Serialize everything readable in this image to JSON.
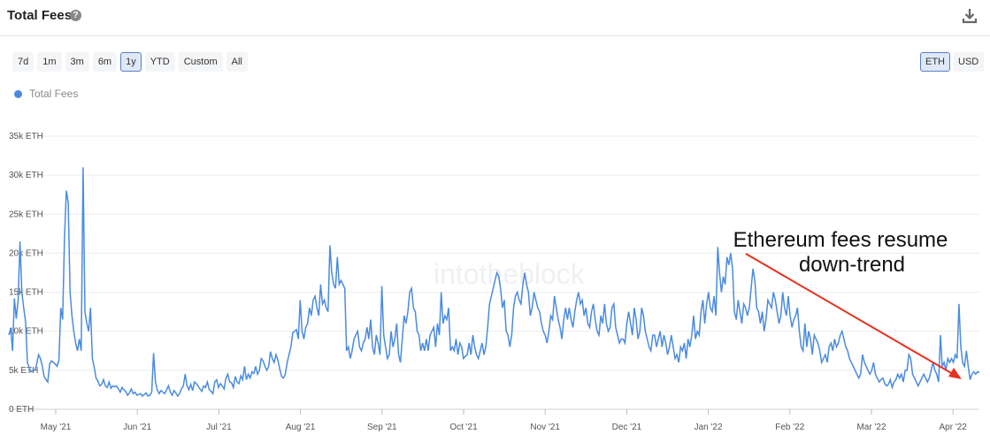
{
  "header": {
    "title": "Total Fees",
    "help_icon": "question-circle-icon",
    "download_icon": "download-icon"
  },
  "ranges": [
    "7d",
    "1m",
    "3m",
    "6m",
    "1y",
    "YTD",
    "Custom",
    "All"
  ],
  "active_range": "1y",
  "units": [
    "ETH",
    "USD"
  ],
  "active_unit": "ETH",
  "watermark": "intotheblock",
  "chart_data": {
    "type": "line",
    "series": [
      {
        "name": "Total Fees",
        "color": "#4a8be0",
        "values": [
          9.5,
          10.4,
          7.5,
          14.2,
          11.6,
          14.0,
          21.5,
          15.0,
          13.0,
          11.2,
          6.0,
          5.3,
          4.8,
          5.0,
          5.0,
          5.8,
          7.0,
          6.5,
          5.5,
          4.2,
          3.8,
          3.5,
          5.8,
          6.2,
          6.0,
          5.8,
          5.5,
          6.3,
          13.0,
          11.5,
          22.0,
          28.0,
          26.5,
          15.0,
          12.0,
          10.0,
          8.5,
          7.5,
          9.0,
          7.5,
          31.0,
          12.5,
          11.0,
          10.0,
          13.0,
          6.5,
          5.4,
          4.0,
          3.6,
          3.0,
          3.2,
          3.8,
          3.0,
          2.8,
          3.5,
          2.7,
          3.0,
          2.9,
          3.0,
          2.6,
          2.2,
          2.8,
          2.5,
          2.3,
          1.8,
          2.1,
          2.6,
          2.0,
          2.2,
          1.8,
          1.9,
          2.0,
          1.7,
          1.9,
          2.1,
          1.7,
          1.8,
          2.2,
          7.2,
          3.5,
          2.5,
          2.0,
          2.4,
          2.2,
          2.0,
          2.5,
          3.0,
          2.2,
          1.8,
          2.4,
          2.1,
          1.7,
          2.0,
          2.6,
          3.0,
          4.5,
          3.0,
          2.5,
          3.2,
          2.4,
          3.5,
          3.3,
          3.0,
          2.6,
          2.3,
          3.0,
          2.8,
          3.5,
          2.5,
          2.3,
          2.0,
          3.5,
          3.8,
          2.8,
          3.3,
          3.0,
          2.6,
          4.0,
          4.5,
          3.5,
          3.4,
          2.8,
          4.2,
          3.5,
          3.3,
          4.3,
          3.8,
          5.5,
          3.8,
          4.5,
          4.0,
          4.8,
          4.6,
          5.5,
          4.5,
          5.0,
          6.5,
          6.2,
          5.5,
          5.0,
          5.5,
          7.4,
          6.5,
          6.0,
          7.0,
          6.3,
          5.2,
          4.2,
          4.0,
          4.5,
          6.0,
          7.0,
          8.0,
          9.8,
          10.0,
          10.2,
          9.0,
          14.0,
          10.0,
          9.0,
          10.5,
          11.0,
          13.0,
          12.0,
          14.0,
          14.5,
          13.0,
          12.0,
          16.0,
          13.5,
          14.0,
          13.0,
          12.5,
          21.0,
          17.5,
          16.0,
          15.5,
          19.5,
          16.0,
          16.5,
          16.0,
          15.5,
          7.5,
          8.0,
          6.5,
          7.5,
          9.0,
          9.5,
          10.0,
          8.0,
          7.5,
          8.5,
          9.0,
          10.5,
          9.0,
          11.5,
          8.0,
          7.0,
          9.5,
          8.5,
          7.0,
          15.8,
          9.5,
          8.0,
          6.5,
          7.0,
          10.0,
          8.0,
          9.0,
          11.0,
          7.0,
          6.0,
          9.0,
          12.0,
          11.0,
          12.5,
          15.0,
          15.5,
          13.0,
          12.5,
          10.0,
          9.5,
          7.5,
          8.5,
          7.5,
          9.0,
          7.5,
          9.5,
          10.0,
          10.5,
          8.0,
          11.0,
          9.5,
          15.0,
          11.0,
          12.0,
          11.5,
          13.0,
          7.5,
          8.0,
          7.5,
          9.0,
          7.0,
          8.5,
          8.0,
          6.5,
          6.8,
          7.0,
          8.5,
          7.0,
          9.5,
          8.0,
          7.0,
          6.5,
          7.5,
          8.5,
          7.0,
          8.0,
          10.5,
          13.5,
          14.5,
          15.5,
          16.5,
          17.5,
          17.0,
          15.5,
          13.0,
          14.0,
          10.0,
          9.5,
          8.0,
          9.5,
          13.0,
          14.5,
          15.0,
          14.0,
          13.5,
          16.0,
          17.5,
          16.0,
          15.0,
          12.0,
          13.0,
          15.0,
          14.0,
          13.0,
          12.5,
          11.0,
          10.0,
          9.5,
          8.5,
          10.0,
          12.0,
          11.5,
          14.5,
          13.0,
          11.5,
          10.5,
          9.0,
          11.5,
          13.0,
          11.5,
          13.0,
          11.5,
          10.5,
          12.5,
          14.0,
          15.0,
          13.5,
          14.0,
          12.0,
          13.0,
          11.0,
          10.5,
          12.5,
          13.5,
          11.5,
          10.0,
          9.5,
          12.0,
          11.0,
          13.5,
          11.0,
          10.0,
          10.5,
          13.0,
          13.5,
          10.5,
          9.5,
          8.5,
          9.0,
          9.0,
          8.5,
          11.0,
          12.5,
          11.0,
          9.5,
          13.0,
          11.5,
          9.0,
          10.0,
          13.0,
          12.0,
          10.0,
          9.0,
          8.0,
          7.5,
          9.5,
          9.5,
          8.0,
          9.0,
          10.0,
          8.0,
          9.5,
          8.5,
          7.0,
          8.0,
          9.5,
          8.0,
          6.5,
          7.0,
          6.0,
          8.0,
          7.5,
          8.5,
          6.5,
          9.0,
          8.0,
          9.5,
          12.0,
          9.0,
          10.0,
          9.5,
          12.5,
          14.0,
          11.0,
          13.5,
          15.0,
          13.0,
          12.5,
          14.5,
          12.0,
          20.8,
          17.5,
          15.0,
          17.0,
          16.0,
          19.5,
          18.5,
          20.0,
          18.0,
          12.5,
          11.5,
          14.0,
          12.5,
          11.0,
          13.5,
          13.0,
          12.0,
          13.0,
          15.5,
          18.0,
          16.5,
          13.0,
          12.5,
          11.0,
          12.5,
          10.0,
          11.5,
          14.0,
          13.5,
          13.0,
          15.0,
          14.0,
          12.5,
          11.0,
          12.0,
          15.0,
          13.0,
          12.0,
          14.5,
          12.0,
          10.5,
          11.5,
          12.0,
          13.0,
          10.0,
          8.0,
          7.5,
          11.0,
          8.0,
          10.0,
          9.0,
          7.0,
          9.5,
          9.0,
          8.5,
          7.5,
          6.0,
          6.5,
          7.0,
          6.0,
          8.0,
          8.5,
          7.5,
          9.0,
          8.0,
          8.5,
          9.5,
          10.0,
          9.0,
          8.0,
          7.5,
          6.5,
          6.0,
          5.5,
          5.0,
          4.5,
          4.0,
          4.5,
          7.0,
          6.0,
          5.5,
          5.0,
          4.5,
          5.0,
          6.0,
          4.5,
          4.0,
          3.5,
          3.8,
          4.0,
          3.3,
          3.0,
          3.2,
          3.8,
          2.8,
          3.5,
          3.8,
          4.5,
          4.0,
          4.5,
          3.5,
          5.0,
          5.0,
          7.0,
          6.5,
          4.5,
          4.0,
          3.5,
          3.0,
          3.5,
          4.0,
          4.5,
          4.0,
          3.5,
          4.0,
          5.0,
          6.0,
          5.0,
          4.5,
          3.5,
          9.5,
          5.5,
          6.0,
          5.0,
          6.5,
          6.0,
          6.5,
          6.0,
          7.0,
          6.5,
          13.5,
          8.0,
          6.0,
          5.5,
          7.5,
          5.5,
          3.8,
          4.5,
          4.8,
          4.5,
          4.8,
          4.7
        ]
      }
    ],
    "x_tick_labels": [
      "May '21",
      "Jun '21",
      "Jul '21",
      "Aug '21",
      "Sep '21",
      "Oct '21",
      "Nov '21",
      "Dec '21",
      "Jan '22",
      "Feb '22",
      "Mar '22",
      "Apr '22"
    ],
    "y_tick_labels": [
      "0 ETH",
      "5k ETH",
      "10k ETH",
      "15k ETH",
      "20k ETH",
      "25k ETH",
      "30k ETH",
      "35k ETH"
    ],
    "y_unit": "k ETH",
    "ylim": [
      0,
      35
    ],
    "grid": true,
    "legend": "top-left",
    "annotation": {
      "lines": [
        "Ethereum fees resume",
        "down-trend"
      ],
      "arrow_color": "#e5321f"
    }
  }
}
